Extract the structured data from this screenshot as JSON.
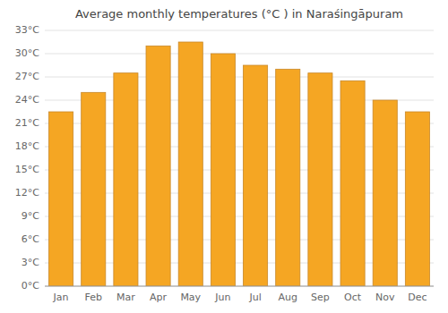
{
  "chart_data": {
    "type": "bar",
    "title": "Average monthly temperatures (°C ) in Naraśingāpuram",
    "categories": [
      "Jan",
      "Feb",
      "Mar",
      "Apr",
      "May",
      "Jun",
      "Jul",
      "Aug",
      "Sep",
      "Oct",
      "Nov",
      "Dec"
    ],
    "values": [
      22.5,
      25.0,
      27.5,
      31.0,
      31.5,
      30.0,
      28.5,
      28.0,
      27.5,
      26.5,
      24.0,
      22.5
    ],
    "color": "#F5A623",
    "ylim": [
      0,
      33
    ],
    "yticks": [
      {
        "value": 0,
        "label": "0°C"
      },
      {
        "value": 3,
        "label": "3°C"
      },
      {
        "value": 6,
        "label": "6°C"
      },
      {
        "value": 9,
        "label": "9°C"
      },
      {
        "value": 12,
        "label": "12°C"
      },
      {
        "value": 15,
        "label": "15°C"
      },
      {
        "value": 18,
        "label": "18°C"
      },
      {
        "value": 21,
        "label": "21°C"
      },
      {
        "value": 24,
        "label": "24°C"
      },
      {
        "value": 27,
        "label": "27°C"
      },
      {
        "value": 30,
        "label": "30°C"
      },
      {
        "value": 33,
        "label": "33°C"
      }
    ],
    "grid": true
  }
}
